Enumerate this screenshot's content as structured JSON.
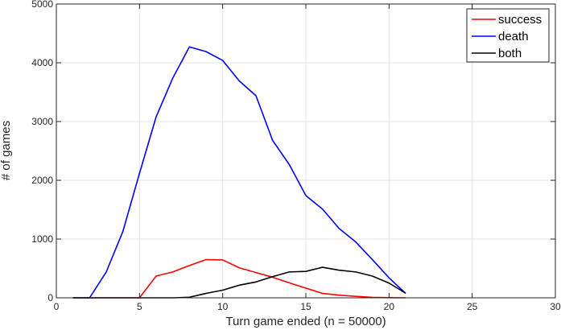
{
  "chart_data": {
    "type": "line",
    "title": "",
    "xlabel": "Turn game ended (n = 50000)",
    "ylabel": "# of games",
    "xlim": [
      0,
      30
    ],
    "ylim": [
      0,
      5000
    ],
    "xticks": [
      0,
      5,
      10,
      15,
      20,
      25,
      30
    ],
    "yticks": [
      0,
      1000,
      2000,
      3000,
      4000,
      5000
    ],
    "grid": true,
    "legend_position": "top-right",
    "x": [
      1,
      2,
      3,
      4,
      5,
      6,
      7,
      8,
      9,
      10,
      11,
      12,
      13,
      14,
      15,
      16,
      17,
      18,
      19,
      20,
      21
    ],
    "series": [
      {
        "name": "success",
        "color": "#ff0000",
        "values": [
          0,
          0,
          0,
          0,
          0,
          370,
          440,
          550,
          650,
          645,
          510,
          430,
          350,
          255,
          165,
          75,
          45,
          25,
          8,
          3,
          0
        ]
      },
      {
        "name": "death",
        "color": "#0000ff",
        "values": [
          0,
          0,
          440,
          1130,
          2120,
          3080,
          3740,
          4270,
          4190,
          4040,
          3690,
          3440,
          2680,
          2270,
          1740,
          1510,
          1180,
          950,
          650,
          340,
          75
        ]
      },
      {
        "name": "both",
        "color": "#000000",
        "values": [
          0,
          0,
          0,
          0,
          0,
          0,
          0,
          10,
          75,
          130,
          215,
          270,
          360,
          440,
          450,
          520,
          470,
          440,
          370,
          250,
          80
        ]
      }
    ]
  }
}
